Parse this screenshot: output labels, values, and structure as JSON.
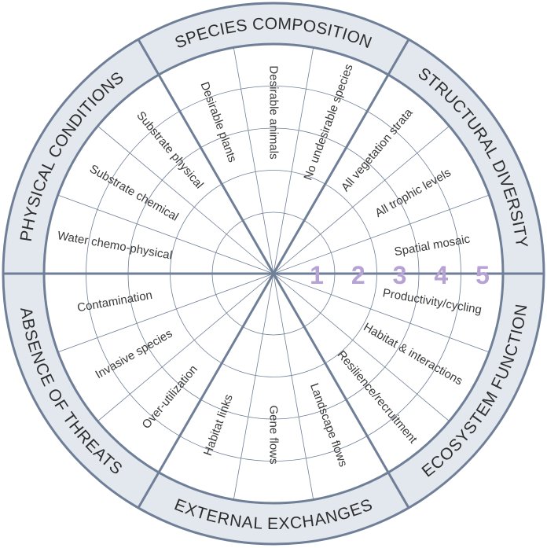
{
  "domains": [
    {
      "name": "SPECIES COMPOSITION",
      "attributes": [
        "Desirable plants",
        "Desirable animals",
        "No undesirable species"
      ]
    },
    {
      "name": "STRUCTURAL DIVERSITY",
      "attributes": [
        "All vegetation strata",
        "All trophic levels",
        "Spatial mosaic"
      ]
    },
    {
      "name": "ECOSYSTEM FUNCTION",
      "attributes": [
        "Productivity/cycling",
        "Habitat & interactions",
        "Resilience/recruitment"
      ]
    },
    {
      "name": "EXTERNAL EXCHANGES",
      "attributes": [
        "Landscape flows",
        "Gene flows",
        "Habitat links"
      ]
    },
    {
      "name": "ABSENCE OF THREATS",
      "attributes": [
        "Over-utilization",
        "Invasive species",
        "Contamination"
      ]
    },
    {
      "name": "PHYSICAL CONDITIONS",
      "attributes": [
        "Water chemo-physical",
        "Substrate chemical",
        "Substrate physical"
      ]
    }
  ],
  "scale": [
    1,
    2,
    3,
    4,
    5
  ]
}
